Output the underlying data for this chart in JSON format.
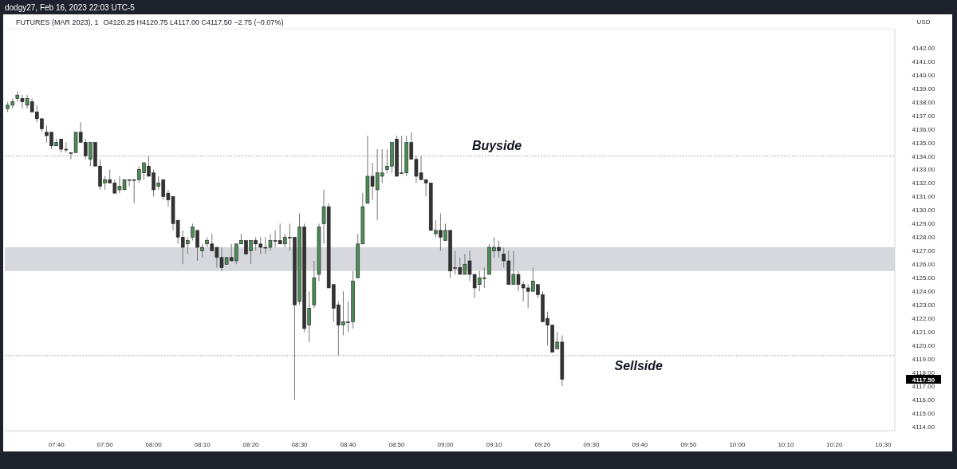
{
  "chart_data": {
    "type": "candlestick",
    "title": "FUTURES (MAR 2023), 1",
    "subtitle": "O4120.25  H4120.75  L4117.00  C4117.50  −2.75 (−0.07%)",
    "ylabel": "USD",
    "annotations": [
      "dodgy27, Feb 16, 2023 22:03 UTC-5",
      "4117.50"
    ],
    "colors": [
      "#4c8c55",
      "#4c8c55",
      "#4c8c55",
      "#333333",
      "#4c8c55",
      "#333333",
      "#333333",
      "#333333",
      "#333333",
      "#333333",
      "#4c8c55",
      "#333333",
      "#4c8c55",
      "#4c8c55",
      "#4c8c55",
      "#333333",
      "#333333",
      "#4c8c55",
      "#333333",
      "#333333",
      "#4c8c55",
      "#333333",
      "#333333",
      "#4c8c55",
      "#4c8c55",
      "#4c8c55",
      "#4c8c55",
      "#4c8c55",
      "#4c8c55",
      "#333333",
      "#333333",
      "#4c8c55",
      "#333333",
      "#333333",
      "#333333",
      "#333333",
      "#333333",
      "#4c8c55",
      "#4c8c55",
      "#333333",
      "#4c8c55",
      "#4c8c55",
      "#333333",
      "#333333",
      "#333333",
      "#4c8c55",
      "#333333",
      "#4c8c55",
      "#4c8c55",
      "#333333",
      "#4c8c55",
      "#333333",
      "#333333",
      "#4c8c55",
      "#4c8c55",
      "#4c8c55",
      "#333333",
      "#4c8c55",
      "#4c8c55",
      "#333333",
      "#4c8c55",
      "#333333",
      "#4c8c55",
      "#4c8c55",
      "#4c8c55",
      "#4c8c55",
      "#333333",
      "#333333",
      "#333333",
      "#4c8c55",
      "#4c8c55",
      "#4c8c55",
      "#4c8c55",
      "#4c8c55",
      "#4c8c55",
      "#333333",
      "#4c8c55",
      "#4c8c55",
      "#4c8c55",
      "#4c8c55",
      "#333333",
      "#4c8c55",
      "#4c8c55",
      "#333333",
      "#333333",
      "#333333",
      "#333333",
      "#333333",
      "#4c8c55",
      "#333333",
      "#4c8c55",
      "#333333",
      "#4c8c55",
      "#333333",
      "#4c8c55",
      "#333333",
      "#333333",
      "#4c8c55",
      "#4c8c55",
      "#4c8c55",
      "#4c8c55",
      "#333333",
      "#333333",
      "#333333",
      "#4c8c55",
      "#333333",
      "#333333",
      "#333333",
      "#4c8c55",
      "#333333",
      "#333333",
      "#333333",
      "#333333",
      "#4c8c55",
      "#333333"
    ],
    "x": [
      7.5,
      7.5167,
      7.5333,
      7.55,
      7.5667,
      7.5833,
      7.6,
      7.6167,
      7.6333,
      7.65,
      7.6667,
      7.6833,
      7.7,
      7.7167,
      7.7333,
      7.75,
      7.7667,
      7.7833,
      7.8,
      7.8167,
      7.8333,
      7.85,
      7.8667,
      7.8833,
      7.9,
      7.9167,
      7.9333,
      7.95,
      7.9667,
      7.9833,
      8,
      8.0167,
      8.0333,
      8.05,
      8.0667,
      8.0833,
      8.1,
      8.1167,
      8.1333,
      8.15,
      8.1667,
      8.1833,
      8.2,
      8.2167,
      8.2333,
      8.25,
      8.2667,
      8.2833,
      8.3,
      8.3167,
      8.3333,
      8.35,
      8.3667,
      8.3833,
      8.4,
      8.4167,
      8.4333,
      8.45,
      8.4667,
      8.4833,
      8.5,
      8.5167,
      8.5333,
      8.55,
      8.5667,
      8.5833,
      8.6,
      8.6167,
      8.6333,
      8.65,
      8.6667,
      8.6833,
      8.7,
      8.7167,
      8.7333,
      8.75,
      8.7667,
      8.7833,
      8.8,
      8.8167,
      8.8333,
      8.85,
      8.8667,
      8.8833,
      8.9,
      8.9167,
      8.9333,
      8.95,
      8.9667,
      8.9833,
      9,
      9.0167,
      9.0333,
      9.05,
      9.0667,
      9.0833,
      9.1,
      9.1167,
      9.1333,
      9.15,
      9.1667,
      9.1833,
      9.2,
      9.2167,
      9.2333,
      9.25,
      9.2667,
      9.2833,
      9.3,
      9.3167,
      9.3333,
      9.35,
      9.3667,
      9.3833,
      9.4
    ],
    "ohlc": [
      [
        4137.5,
        4138,
        4137.25,
        4137.75
      ],
      [
        4137.75,
        4138.25,
        4137.5,
        4138
      ],
      [
        4138.25,
        4138.75,
        4138,
        4138.5
      ],
      [
        4138.25,
        4138.5,
        4137.5,
        4138
      ],
      [
        4137.75,
        4138.5,
        4137.5,
        4138.25
      ],
      [
        4138,
        4138.25,
        4137.25,
        4137.25
      ],
      [
        4137.25,
        4137.75,
        4136.5,
        4136.75
      ],
      [
        4136.75,
        4136.75,
        4135.75,
        4136
      ],
      [
        4135.75,
        4136.25,
        4135,
        4135.5
      ],
      [
        4135.75,
        4135.75,
        4134.5,
        4134.75
      ],
      [
        4134.75,
        4135.25,
        4134.75,
        4135
      ],
      [
        4135.25,
        4135.25,
        4134.25,
        4134.5
      ],
      [
        4134.5,
        4135,
        4134.25,
        4134.5
      ],
      [
        4134.25,
        4134.25,
        4133.75,
        4134.25
      ],
      [
        4134.25,
        4135.75,
        4134.25,
        4135.75
      ],
      [
        4135.75,
        4136.5,
        4135,
        4135
      ],
      [
        4135,
        4135.25,
        4133.75,
        4134
      ],
      [
        4133.75,
        4135,
        4133.25,
        4135
      ],
      [
        4135,
        4135,
        4133.25,
        4133.25
      ],
      [
        4133.25,
        4133.75,
        4131.5,
        4131.75
      ],
      [
        4132,
        4132.5,
        4131.5,
        4132.25
      ],
      [
        4132.25,
        4133,
        4132,
        4132
      ],
      [
        4132,
        4132.25,
        4131.25,
        4131.25
      ],
      [
        4131.5,
        4132.5,
        4131.25,
        4131.75
      ],
      [
        4131.5,
        4132.25,
        4131.5,
        4132.25
      ],
      [
        4132.25,
        4132.25,
        4131.75,
        4132.25
      ],
      [
        4132.25,
        4132.25,
        4130.5,
        4132.25
      ],
      [
        4132.25,
        4133.25,
        4132,
        4133
      ],
      [
        4132.75,
        4133.5,
        4132.25,
        4133.5
      ],
      [
        4133.25,
        4134,
        4132.5,
        4132.5
      ],
      [
        4132.75,
        4133,
        4131,
        4131.5
      ],
      [
        4131.75,
        4132.5,
        4131.5,
        4132
      ],
      [
        4132.25,
        4132.25,
        4130.75,
        4131
      ],
      [
        4131.25,
        4131.5,
        4130.25,
        4130.75
      ],
      [
        4131,
        4131,
        4128.5,
        4129
      ],
      [
        4129.25,
        4129.25,
        4127.5,
        4128
      ],
      [
        4128,
        4128.5,
        4126,
        4127.25
      ],
      [
        4127.5,
        4128,
        4126.75,
        4127.75
      ],
      [
        4128,
        4129,
        4127.75,
        4128.75
      ],
      [
        4128.5,
        4128.5,
        4126.25,
        4127.25
      ],
      [
        4127,
        4127.5,
        4126.5,
        4127.25
      ],
      [
        4127.5,
        4128,
        4127.25,
        4127.75
      ],
      [
        4127.5,
        4128.25,
        4127,
        4127
      ],
      [
        4127.25,
        4127.25,
        4125.75,
        4126.5
      ],
      [
        4126.5,
        4127.25,
        4125.5,
        4125.75
      ],
      [
        4126,
        4126.5,
        4126,
        4126.5
      ],
      [
        4126.5,
        4127.5,
        4126.25,
        4126.25
      ],
      [
        4126.25,
        4127.5,
        4126,
        4127.5
      ],
      [
        4127.5,
        4128.25,
        4127.5,
        4127.75
      ],
      [
        4127.75,
        4127.75,
        4126.75,
        4126.75
      ],
      [
        4127,
        4127.75,
        4126,
        4127.75
      ],
      [
        4127.75,
        4128,
        4127,
        4127.5
      ],
      [
        4127.5,
        4128,
        4126.75,
        4127.25
      ],
      [
        4127.25,
        4128,
        4126.75,
        4127.25
      ],
      [
        4127.25,
        4128.25,
        4127,
        4127.75
      ],
      [
        4127.75,
        4128.5,
        4127.25,
        4127.75
      ],
      [
        4127.75,
        4129,
        4127.5,
        4127.5
      ],
      [
        4127.5,
        4128.25,
        4127.25,
        4128
      ],
      [
        4128,
        4129,
        4127,
        4128
      ],
      [
        4128,
        4128,
        4116,
        4123
      ],
      [
        4123.25,
        4129.75,
        4123,
        4128.75
      ],
      [
        4128.75,
        4129,
        4121,
        4121.25
      ],
      [
        4121.5,
        4124,
        4120.25,
        4122.75
      ],
      [
        4123,
        4126.25,
        4122.75,
        4125
      ],
      [
        4125.25,
        4129,
        4124.75,
        4128.75
      ],
      [
        4129,
        4131.5,
        4127.5,
        4130.25
      ],
      [
        4130.25,
        4130.5,
        4124.25,
        4124.25
      ],
      [
        4124.5,
        4124.5,
        4121.75,
        4122.75
      ],
      [
        4123,
        4123.25,
        4119.25,
        4121.5
      ],
      [
        4121.5,
        4124,
        4120.75,
        4121.75
      ],
      [
        4121.75,
        4123.25,
        4121,
        4121.75
      ],
      [
        4121.75,
        4125.5,
        4121.25,
        4124.75
      ],
      [
        4125,
        4128.25,
        4125,
        4127.5
      ],
      [
        4127.5,
        4131.25,
        4127.5,
        4130.25
      ],
      [
        4130.5,
        4135.5,
        4130.5,
        4132.5
      ],
      [
        4132.5,
        4133.5,
        4130.75,
        4131.75
      ],
      [
        4131.5,
        4134.5,
        4129.25,
        4132.75
      ],
      [
        4132.5,
        4134.5,
        4132,
        4132.75
      ],
      [
        4133,
        4134.5,
        4132.75,
        4133.25
      ],
      [
        4133.25,
        4135,
        4132.75,
        4135
      ],
      [
        4135.25,
        4135.5,
        4132.5,
        4132.5
      ],
      [
        4132.75,
        4135.5,
        4132.75,
        4132.75
      ],
      [
        4132.75,
        4135.5,
        4132.5,
        4135
      ],
      [
        4135,
        4135.75,
        4133.75,
        4133.75
      ],
      [
        4133.75,
        4134,
        4132,
        4132.5
      ],
      [
        4132.75,
        4134,
        4132.25,
        4132.25
      ],
      [
        4132.25,
        4132.25,
        4131,
        4132
      ],
      [
        4132,
        4132,
        4128.5,
        4128.5
      ],
      [
        4128.25,
        4129.25,
        4128,
        4128.5
      ],
      [
        4128.5,
        4129.75,
        4127,
        4128
      ],
      [
        4127.75,
        4129,
        4127.75,
        4128.5
      ],
      [
        4128.5,
        4128.5,
        4125,
        4125.5
      ],
      [
        4125.75,
        4127,
        4125.25,
        4125.75
      ],
      [
        4125.75,
        4126.5,
        4125.25,
        4125.25
      ],
      [
        4125.25,
        4126.75,
        4125.25,
        4126
      ],
      [
        4126.25,
        4127,
        4124.75,
        4125.25
      ],
      [
        4125.25,
        4125.25,
        4123.5,
        4124.25
      ],
      [
        4124.5,
        4125.5,
        4124,
        4125
      ],
      [
        4125,
        4125.75,
        4124.25,
        4125
      ],
      [
        4125.25,
        4127.5,
        4125.25,
        4127.25
      ],
      [
        4127,
        4128,
        4126.5,
        4127.25
      ],
      [
        4127.25,
        4127.75,
        4126.5,
        4127
      ],
      [
        4126.75,
        4127.25,
        4125.75,
        4126.25
      ],
      [
        4126.25,
        4127,
        4124.5,
        4124.5
      ],
      [
        4124.5,
        4127,
        4124.5,
        4125.25
      ],
      [
        4125.25,
        4125.5,
        4124,
        4124.5
      ],
      [
        4124.5,
        4124.75,
        4123.25,
        4124.25
      ],
      [
        4124.25,
        4124.5,
        4122.75,
        4124
      ],
      [
        4124,
        4125.75,
        4124,
        4124.75
      ],
      [
        4124.5,
        4124.5,
        4123.5,
        4123.75
      ],
      [
        4123.75,
        4124,
        4121.75,
        4121.75
      ],
      [
        4122,
        4122.5,
        4120,
        4121.5
      ],
      [
        4121.5,
        4121.5,
        4119.5,
        4119.5
      ],
      [
        4119.75,
        4121,
        4119.75,
        4120.25
      ],
      [
        4120.25,
        4120.75,
        4117,
        4117.5
      ]
    ],
    "xlim": [
      7.49,
      10.54
    ],
    "xticks": [
      {
        "value": 7.6667,
        "label": "07:40"
      },
      {
        "value": 7.8333,
        "label": "07:50"
      },
      {
        "value": 8,
        "label": "08:00"
      },
      {
        "value": 8.1667,
        "label": "08:10"
      },
      {
        "value": 8.3333,
        "label": "08:20"
      },
      {
        "value": 8.5,
        "label": "08:30"
      },
      {
        "value": 8.6667,
        "label": "08:40"
      },
      {
        "value": 8.8333,
        "label": "08:50"
      },
      {
        "value": 9,
        "label": "09:00"
      },
      {
        "value": 9.1667,
        "label": "09:10"
      },
      {
        "value": 9.3333,
        "label": "09:20"
      },
      {
        "value": 9.5,
        "label": "09:30"
      },
      {
        "value": 9.6667,
        "label": "09:40"
      },
      {
        "value": 9.8333,
        "label": "09:50"
      },
      {
        "value": 10,
        "label": "10:00"
      },
      {
        "value": 10.1667,
        "label": "10:10"
      },
      {
        "value": 10.3333,
        "label": "10:20"
      },
      {
        "value": 10.5,
        "label": "10:30"
      }
    ],
    "ylim": [
      4113.7,
      4143.4
    ],
    "yticks": [
      {
        "value": 4114,
        "label": "4114.00"
      },
      {
        "value": 4115,
        "label": "4115.00"
      },
      {
        "value": 4116,
        "label": "4116.00"
      },
      {
        "value": 4117,
        "label": "4117.00"
      },
      {
        "value": 4118,
        "label": "4118.00"
      },
      {
        "value": 4119,
        "label": "4119.00"
      },
      {
        "value": 4120,
        "label": "4120.00"
      },
      {
        "value": 4121,
        "label": "4121.00"
      },
      {
        "value": 4122,
        "label": "4122.00"
      },
      {
        "value": 4123,
        "label": "4123.00"
      },
      {
        "value": 4124,
        "label": "4124.00"
      },
      {
        "value": 4125,
        "label": "4125.00"
      },
      {
        "value": 4126,
        "label": "4126.00"
      },
      {
        "value": 4127,
        "label": "4127.00"
      },
      {
        "value": 4128,
        "label": "4128.00"
      },
      {
        "value": 4129,
        "label": "4129.00"
      },
      {
        "value": 4130,
        "label": "4130.00"
      },
      {
        "value": 4131,
        "label": "4131.00"
      },
      {
        "value": 4132,
        "label": "4132.00"
      },
      {
        "value": 4133,
        "label": "4133.00"
      },
      {
        "value": 4134,
        "label": "4134.00"
      },
      {
        "value": 4135,
        "label": "4135.00"
      },
      {
        "value": 4136,
        "label": "4136.00"
      },
      {
        "value": 4137,
        "label": "4137.00"
      },
      {
        "value": 4138,
        "label": "4138.00"
      },
      {
        "value": 4139,
        "label": "4139.00"
      },
      {
        "value": 4140,
        "label": "4140.00"
      },
      {
        "value": 4141,
        "label": "4141.00"
      },
      {
        "value": 4142,
        "label": "4142.00"
      }
    ],
    "ref_lines": [
      {
        "axis": "y",
        "value": 4134,
        "label": "Buyside",
        "color": "#9a9a9a",
        "line_style": "dotted"
      },
      {
        "axis": "y",
        "value": 4119.25,
        "label": "Sellside",
        "color": "#9a9a9a",
        "line_style": "dotted"
      }
    ],
    "bands": [
      {
        "axis": "y",
        "from": 4125.5,
        "to": 4127.25,
        "color": "#d7d8de"
      }
    ]
  }
}
